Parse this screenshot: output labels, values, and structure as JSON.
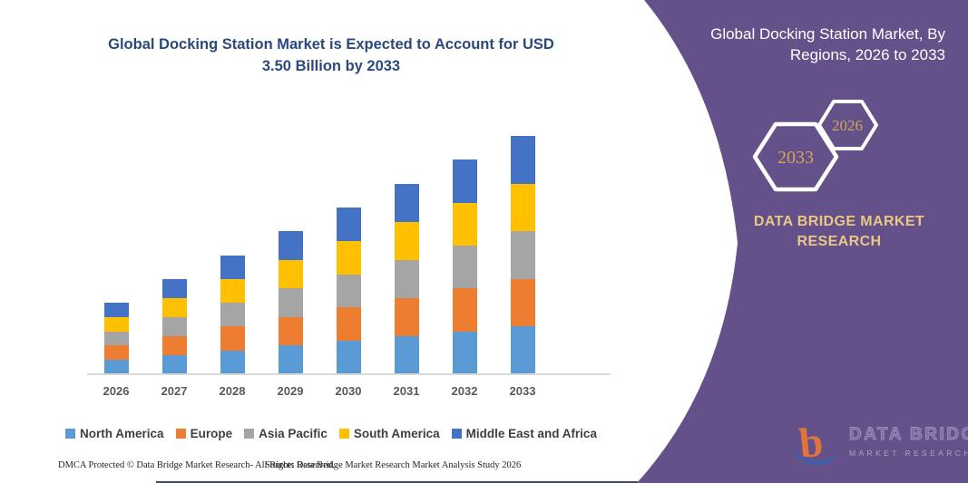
{
  "left_panel": {
    "title_line1": "Global Docking Station Market is Expected to Account for USD",
    "title_line2": "3.50 Billion by 2033"
  },
  "chart_data": {
    "type": "bar",
    "stacked": true,
    "title": "Global Docking Station Market is Expected to Account for USD 3.50 Billion by 2033",
    "unit": "USD Billion",
    "categories": [
      "2026",
      "2027",
      "2028",
      "2029",
      "2030",
      "2031",
      "2032",
      "2033"
    ],
    "series": [
      {
        "name": "North America",
        "color": "#5B9BD5",
        "values": [
          0.21,
          0.28,
          0.35,
          0.42,
          0.49,
          0.56,
          0.63,
          0.7
        ]
      },
      {
        "name": "Europe",
        "color": "#ED7D31",
        "values": [
          0.21,
          0.28,
          0.35,
          0.42,
          0.49,
          0.56,
          0.63,
          0.7
        ]
      },
      {
        "name": "Asia Pacific",
        "color": "#A5A5A5",
        "values": [
          0.21,
          0.28,
          0.35,
          0.42,
          0.49,
          0.56,
          0.63,
          0.7
        ]
      },
      {
        "name": "South America",
        "color": "#FFC000",
        "values": [
          0.21,
          0.28,
          0.35,
          0.42,
          0.49,
          0.56,
          0.63,
          0.7
        ]
      },
      {
        "name": "Middle East and Africa",
        "color": "#4472C4",
        "values": [
          0.21,
          0.28,
          0.35,
          0.42,
          0.49,
          0.56,
          0.63,
          0.7
        ]
      }
    ],
    "totals": [
      1.05,
      1.4,
      1.75,
      2.1,
      2.45,
      2.8,
      3.15,
      3.5
    ],
    "ylim": [
      0,
      3.6
    ],
    "grid": false,
    "legend_position": "bottom"
  },
  "footer": {
    "dmca": "DMCA Protected © Data Bridge Market Research- All Rights Reserved.",
    "source": "Source: Data Bridge Market Research Market Analysis Study 2026"
  },
  "right_panel": {
    "title_line1": "Global Docking Station Market, By",
    "title_line2": "Regions, 2026 to 2033",
    "hex_large_year": "2033",
    "hex_small_year": "2026",
    "brand_line1": "DATA BRIDGE MARKET",
    "brand_line2": "RESEARCH",
    "ribbon_color": "#655189",
    "gold_color": "#cfa45c"
  },
  "watermark": {
    "title": "DATA BRIDGE",
    "subtitle": "MARKET RESEARCH"
  }
}
